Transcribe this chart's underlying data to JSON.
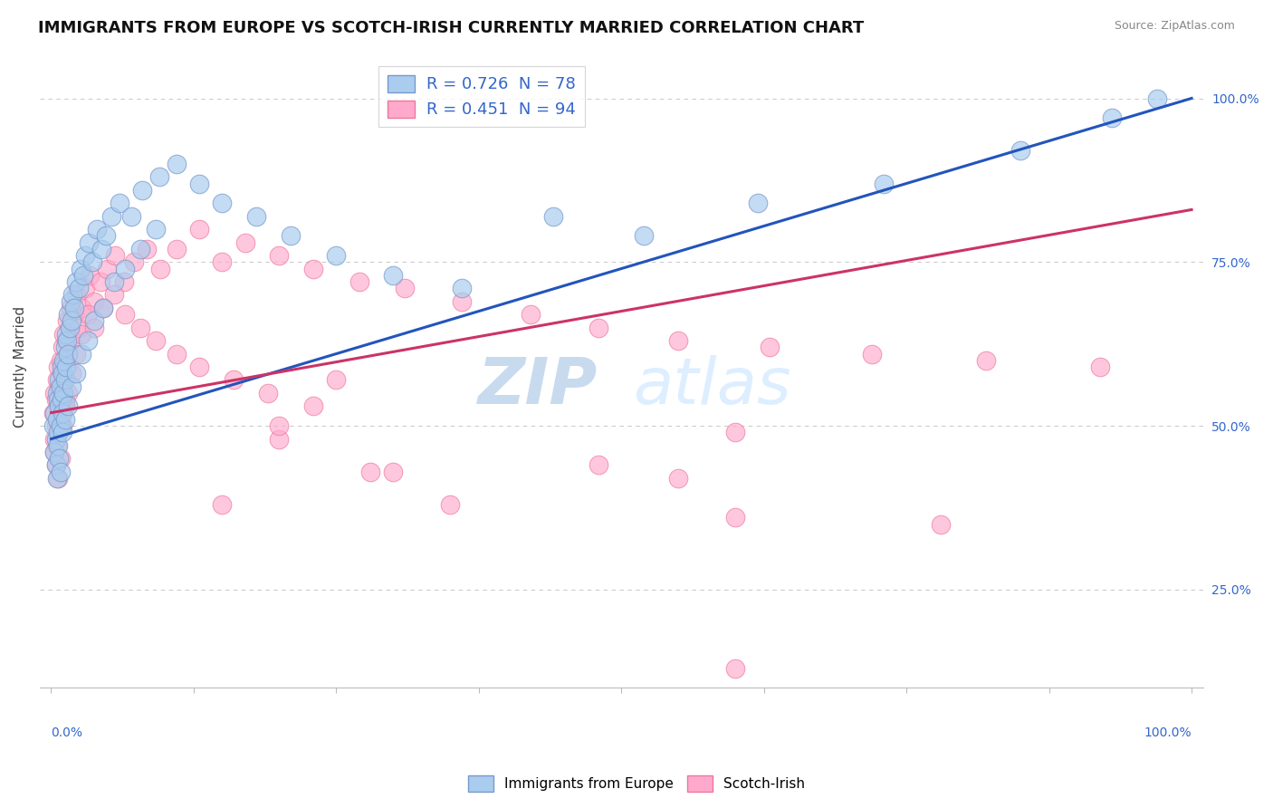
{
  "title": "IMMIGRANTS FROM EUROPE VS SCOTCH-IRISH CURRENTLY MARRIED CORRELATION CHART",
  "source": "Source: ZipAtlas.com",
  "ylabel": "Currently Married",
  "ytick_labels": [
    "25.0%",
    "50.0%",
    "75.0%",
    "100.0%"
  ],
  "ytick_positions": [
    0.25,
    0.5,
    0.75,
    1.0
  ],
  "legend1_text": "R = 0.726  N = 78",
  "legend2_text": "R = 0.451  N = 94",
  "blue_line_color": "#2255BB",
  "pink_line_color": "#CC3366",
  "blue_marker_face": "#AACCEE",
  "blue_marker_edge": "#7799CC",
  "pink_marker_face": "#FFAACC",
  "pink_marker_edge": "#EE7799",
  "watermark_zip": "ZIP",
  "watermark_atlas": "atlas",
  "blue_line_x0": 0.0,
  "blue_line_y0": 0.48,
  "blue_line_x1": 1.0,
  "blue_line_y1": 1.0,
  "pink_line_x0": 0.0,
  "pink_line_y0": 0.52,
  "pink_line_x1": 1.0,
  "pink_line_y1": 0.83,
  "ymin": 0.1,
  "ymax": 1.08,
  "xmin": -0.01,
  "xmax": 1.01,
  "blue_x": [
    0.002,
    0.003,
    0.004,
    0.005,
    0.005,
    0.006,
    0.006,
    0.007,
    0.007,
    0.008,
    0.008,
    0.009,
    0.009,
    0.01,
    0.01,
    0.011,
    0.011,
    0.012,
    0.012,
    0.013,
    0.013,
    0.014,
    0.015,
    0.015,
    0.016,
    0.017,
    0.018,
    0.019,
    0.02,
    0.022,
    0.024,
    0.026,
    0.028,
    0.03,
    0.033,
    0.036,
    0.04,
    0.044,
    0.048,
    0.053,
    0.06,
    0.07,
    0.08,
    0.095,
    0.11,
    0.13,
    0.15,
    0.18,
    0.21,
    0.25,
    0.3,
    0.36,
    0.44,
    0.52,
    0.62,
    0.73,
    0.85,
    0.93,
    0.97,
    0.003,
    0.004,
    0.005,
    0.006,
    0.007,
    0.008,
    0.01,
    0.012,
    0.015,
    0.018,
    0.022,
    0.027,
    0.032,
    0.038,
    0.046,
    0.055,
    0.065,
    0.078,
    0.092
  ],
  "blue_y": [
    0.5,
    0.52,
    0.48,
    0.55,
    0.51,
    0.54,
    0.49,
    0.57,
    0.53,
    0.56,
    0.5,
    0.59,
    0.54,
    0.58,
    0.52,
    0.6,
    0.55,
    0.62,
    0.57,
    0.64,
    0.59,
    0.63,
    0.67,
    0.61,
    0.65,
    0.69,
    0.66,
    0.7,
    0.68,
    0.72,
    0.71,
    0.74,
    0.73,
    0.76,
    0.78,
    0.75,
    0.8,
    0.77,
    0.79,
    0.82,
    0.84,
    0.82,
    0.86,
    0.88,
    0.9,
    0.87,
    0.84,
    0.82,
    0.79,
    0.76,
    0.73,
    0.71,
    0.82,
    0.79,
    0.84,
    0.87,
    0.92,
    0.97,
    1.0,
    0.46,
    0.44,
    0.42,
    0.47,
    0.45,
    0.43,
    0.49,
    0.51,
    0.53,
    0.56,
    0.58,
    0.61,
    0.63,
    0.66,
    0.68,
    0.72,
    0.74,
    0.77,
    0.8
  ],
  "pink_x": [
    0.002,
    0.003,
    0.003,
    0.004,
    0.004,
    0.005,
    0.005,
    0.006,
    0.006,
    0.007,
    0.007,
    0.008,
    0.008,
    0.009,
    0.009,
    0.01,
    0.01,
    0.011,
    0.011,
    0.012,
    0.012,
    0.013,
    0.014,
    0.015,
    0.016,
    0.017,
    0.018,
    0.02,
    0.022,
    0.024,
    0.027,
    0.03,
    0.034,
    0.038,
    0.043,
    0.049,
    0.056,
    0.064,
    0.073,
    0.084,
    0.096,
    0.11,
    0.13,
    0.15,
    0.17,
    0.2,
    0.23,
    0.27,
    0.31,
    0.36,
    0.42,
    0.48,
    0.55,
    0.63,
    0.72,
    0.82,
    0.92,
    0.003,
    0.004,
    0.005,
    0.006,
    0.007,
    0.008,
    0.01,
    0.012,
    0.015,
    0.018,
    0.022,
    0.027,
    0.032,
    0.038,
    0.046,
    0.055,
    0.065,
    0.078,
    0.092,
    0.11,
    0.13,
    0.16,
    0.19,
    0.23,
    0.2,
    0.28,
    0.35,
    0.48,
    0.2,
    0.3,
    0.55,
    0.6,
    0.78,
    0.6,
    0.6,
    0.25,
    0.15
  ],
  "pink_y": [
    0.52,
    0.55,
    0.48,
    0.54,
    0.5,
    0.57,
    0.51,
    0.59,
    0.53,
    0.56,
    0.5,
    0.6,
    0.54,
    0.58,
    0.52,
    0.62,
    0.55,
    0.64,
    0.57,
    0.6,
    0.54,
    0.63,
    0.66,
    0.61,
    0.65,
    0.68,
    0.63,
    0.67,
    0.7,
    0.65,
    0.68,
    0.71,
    0.73,
    0.69,
    0.72,
    0.74,
    0.76,
    0.72,
    0.75,
    0.77,
    0.74,
    0.77,
    0.8,
    0.75,
    0.78,
    0.76,
    0.74,
    0.72,
    0.71,
    0.69,
    0.67,
    0.65,
    0.63,
    0.62,
    0.61,
    0.6,
    0.59,
    0.46,
    0.44,
    0.47,
    0.42,
    0.49,
    0.45,
    0.5,
    0.53,
    0.55,
    0.58,
    0.61,
    0.64,
    0.67,
    0.65,
    0.68,
    0.7,
    0.67,
    0.65,
    0.63,
    0.61,
    0.59,
    0.57,
    0.55,
    0.53,
    0.48,
    0.43,
    0.38,
    0.44,
    0.5,
    0.43,
    0.42,
    0.49,
    0.35,
    0.36,
    0.13,
    0.57,
    0.38
  ]
}
